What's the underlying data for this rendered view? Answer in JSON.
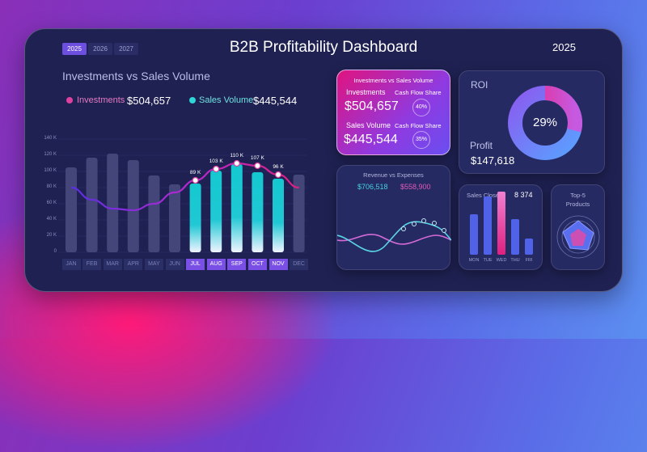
{
  "header": {
    "title": "B2B Profitability Dashboard",
    "year": "2025",
    "year_tabs": [
      "2025",
      "2026",
      "2027"
    ],
    "active_year": "2025"
  },
  "main_chart": {
    "title": "Investments vs Sales Volume",
    "legend": [
      {
        "label": "Investments",
        "value": "$504,657",
        "color": "#e040a0"
      },
      {
        "label": "Sales Volume",
        "value": "$445,544",
        "color": "#2fd6d6"
      }
    ]
  },
  "chart_data": {
    "type": "bar",
    "categories": [
      "JAN",
      "FEB",
      "MAR",
      "APR",
      "MAY",
      "JUN",
      "JUL",
      "AUG",
      "SEP",
      "OCT",
      "NOV",
      "DEC"
    ],
    "highlighted": [
      "JUL",
      "AUG",
      "SEP",
      "OCT",
      "NOV"
    ],
    "yticks": [
      "0",
      "20 K",
      "40 K",
      "60 K",
      "80 K",
      "100 K",
      "120 K",
      "140 K"
    ],
    "ylim": [
      0,
      140
    ],
    "series": [
      {
        "name": "Investments",
        "type": "bar",
        "values": [
          105,
          117,
          122,
          114,
          95,
          84,
          85,
          101,
          109,
          99,
          91,
          96
        ]
      },
      {
        "name": "Sales Volume",
        "type": "line",
        "values": [
          80,
          65,
          54,
          52,
          60,
          74,
          89,
          103,
          110,
          107,
          96,
          80
        ]
      }
    ],
    "data_labels": {
      "JUL": "89 K",
      "AUG": "103 K",
      "SEP": "110 K",
      "OCT": "107 K",
      "NOV": "96 K"
    }
  },
  "inv_card": {
    "title": "Investments vs Sales Volume",
    "inv_label": "Investments",
    "inv_value": "$504,657",
    "share_label": "Cash Flow Share",
    "inv_share": "40%",
    "sales_label": "Sales Volume",
    "sales_value": "$445,544",
    "sales_share": "35%"
  },
  "roi": {
    "title": "ROI",
    "percent": "29%",
    "value": 29,
    "profit_label": "Profit",
    "profit_value": "$147,618"
  },
  "revenue": {
    "title": "Revenue vs Expenses",
    "revenue": "$706,518",
    "expenses": "$558,900"
  },
  "sales_closed": {
    "title": "Sales Closed",
    "value": "8 374",
    "days": [
      "MON",
      "TUE",
      "WED",
      "THU",
      "FRI"
    ],
    "values": [
      50,
      72,
      78,
      44,
      20
    ]
  },
  "top5": {
    "title": "Top-5 Products"
  }
}
